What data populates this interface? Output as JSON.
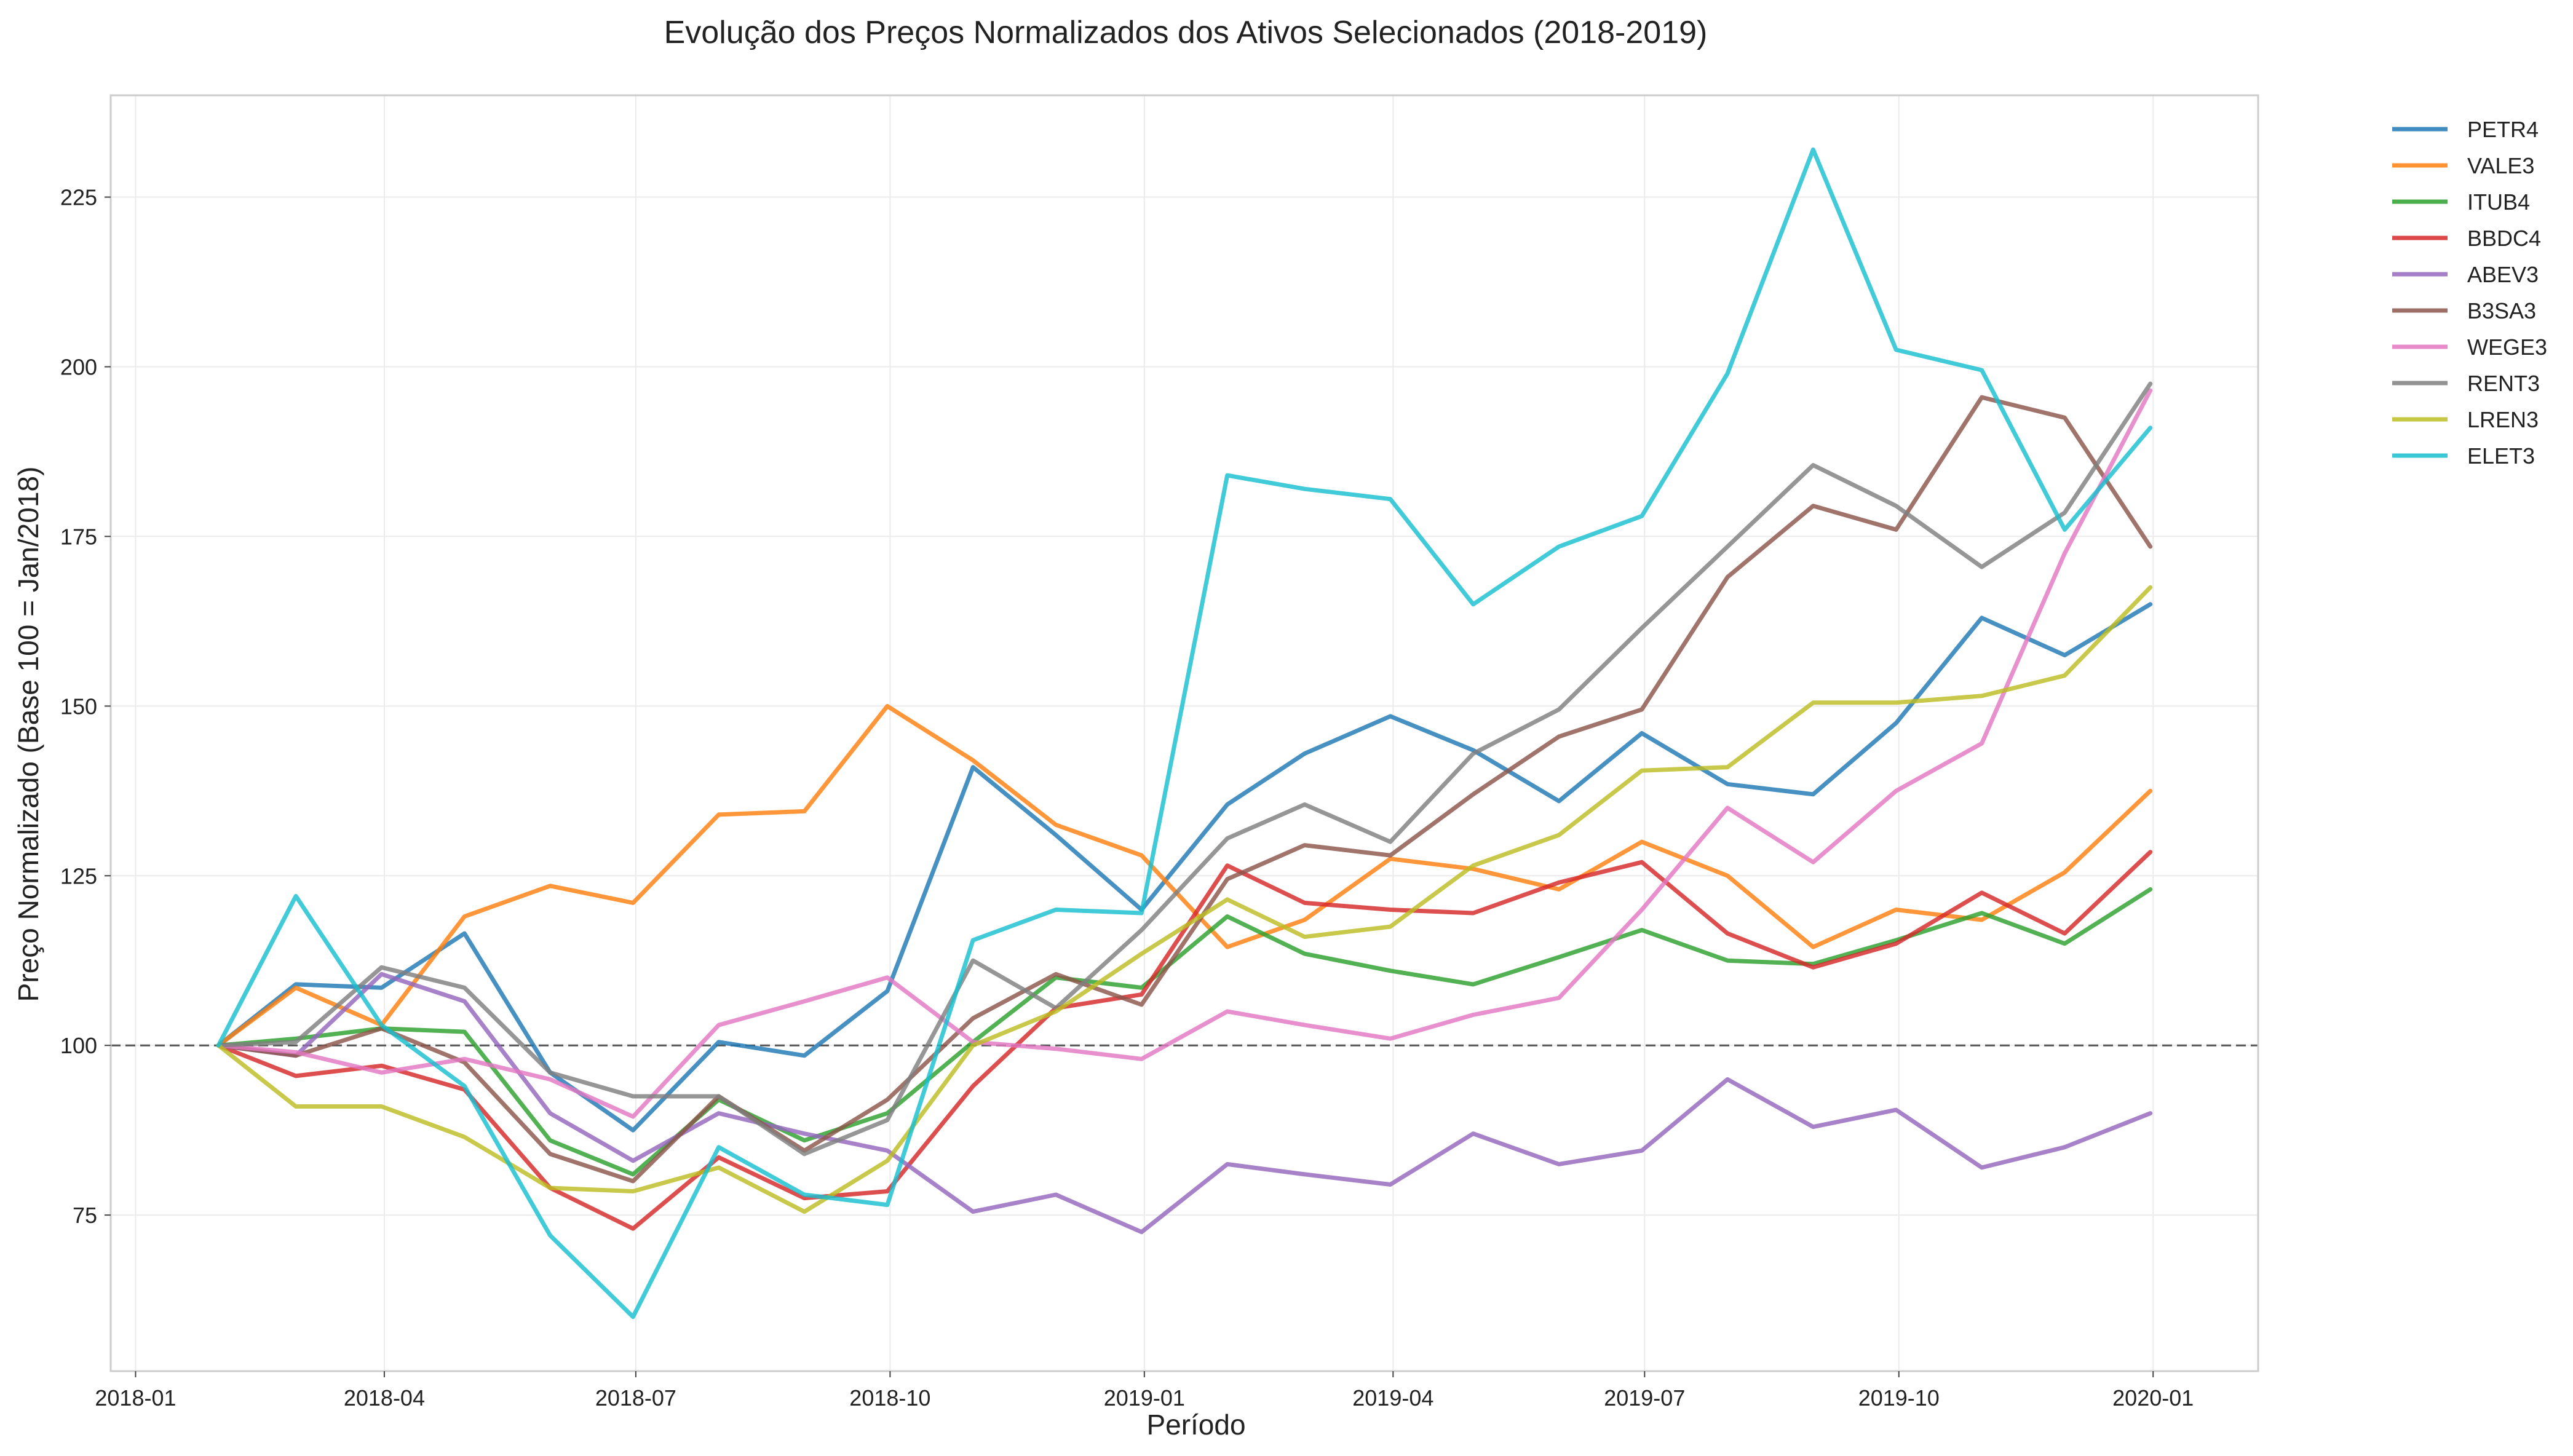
{
  "chart_data": {
    "type": "line",
    "title": "Evolução dos Preços Normalizados dos Ativos Selecionados (2018-2019)",
    "xlabel": "Período",
    "ylabel": "Preço Normalizado (Base 100 = Jan/2018)",
    "x": [
      "2018-01-31",
      "2018-02-28",
      "2018-03-31",
      "2018-04-30",
      "2018-05-31",
      "2018-06-30",
      "2018-07-31",
      "2018-08-31",
      "2018-09-30",
      "2018-10-31",
      "2018-11-30",
      "2018-12-31",
      "2019-01-31",
      "2019-02-28",
      "2019-03-31",
      "2019-04-30",
      "2019-05-31",
      "2019-06-30",
      "2019-07-31",
      "2019-08-31",
      "2019-09-30",
      "2019-10-31",
      "2019-11-30",
      "2019-12-31"
    ],
    "xlim": [
      "2017-12-23",
      "2020-02-08"
    ],
    "ylim": [
      52,
      240
    ],
    "xticks": [
      "2018-01",
      "2018-04",
      "2018-07",
      "2018-10",
      "2019-01",
      "2019-04",
      "2019-07",
      "2019-10",
      "2020-01"
    ],
    "xtick_dates": [
      "2018-01-01",
      "2018-04-01",
      "2018-07-01",
      "2018-10-01",
      "2019-01-01",
      "2019-04-01",
      "2019-07-01",
      "2019-10-01",
      "2020-01-01"
    ],
    "yticks": [
      75,
      100,
      125,
      150,
      175,
      200,
      225
    ],
    "reference_line": 100,
    "grid": true,
    "legend": "outside-top-right",
    "series": [
      {
        "name": "PETR4",
        "color": "#1f77b4",
        "values": [
          100,
          109,
          108.5,
          116.5,
          96,
          87.5,
          100.5,
          98.5,
          108,
          141,
          131,
          120,
          135.5,
          143,
          148.5,
          143.5,
          136,
          146,
          138.5,
          137,
          147.5,
          163,
          157.5,
          165
        ]
      },
      {
        "name": "VALE3",
        "color": "#ff7f0e",
        "values": [
          100,
          108.5,
          103,
          119,
          123.5,
          121,
          134,
          134.5,
          150,
          142,
          132.5,
          128,
          114.5,
          118.5,
          127.5,
          126,
          123,
          130,
          125,
          114.5,
          120,
          118.5,
          125.5,
          137.5
        ]
      },
      {
        "name": "ITUB4",
        "color": "#2ca02c",
        "values": [
          100,
          101,
          102.5,
          102,
          86,
          81,
          92,
          86,
          90,
          100.5,
          110,
          108.5,
          119,
          113.5,
          111,
          109,
          113,
          117,
          112.5,
          112,
          115.5,
          119.5,
          115,
          123
        ]
      },
      {
        "name": "BBDC4",
        "color": "#d62728",
        "values": [
          100,
          95.5,
          97,
          93.5,
          79,
          73,
          83.5,
          77.5,
          78.5,
          94,
          105.5,
          107.5,
          126.5,
          121,
          120,
          119.5,
          124,
          127,
          116.5,
          111.5,
          115,
          122.5,
          116.5,
          128.5
        ]
      },
      {
        "name": "ABEV3",
        "color": "#9467bd",
        "values": [
          100,
          98.5,
          110.5,
          106.5,
          90,
          83,
          90,
          87,
          84.5,
          75.5,
          78,
          72.5,
          82.5,
          81,
          79.5,
          87,
          82.5,
          84.5,
          95,
          88,
          90.5,
          82,
          85,
          90
        ]
      },
      {
        "name": "B3SA3",
        "color": "#8c564b",
        "values": [
          100,
          98.5,
          102.5,
          97.5,
          84,
          80,
          92.5,
          84.5,
          92,
          104,
          110.5,
          106,
          124.5,
          129.5,
          128,
          137,
          145.5,
          149.5,
          169,
          179.5,
          176,
          195.5,
          192.5,
          173.5
        ]
      },
      {
        "name": "WEGE3",
        "color": "#e377c2",
        "values": [
          100,
          99,
          96,
          98,
          95,
          89.5,
          103,
          106.5,
          110,
          100.5,
          99.5,
          98,
          105,
          103,
          101,
          104.5,
          107,
          120,
          135,
          127,
          137.5,
          144.5,
          172.5,
          196.5
        ]
      },
      {
        "name": "RENT3",
        "color": "#7f7f7f",
        "values": [
          100,
          100.5,
          111.5,
          108.5,
          96,
          92.5,
          92.5,
          84,
          89,
          112.5,
          105.5,
          117,
          130.5,
          135.5,
          130,
          143,
          149.5,
          161.5,
          173.5,
          185.5,
          179.5,
          170.5,
          178.5,
          197.5
        ]
      },
      {
        "name": "LREN3",
        "color": "#bcbd22",
        "values": [
          100,
          91,
          91,
          86.5,
          79,
          78.5,
          82,
          75.5,
          83,
          100,
          105,
          113.5,
          121.5,
          116,
          117.5,
          126.5,
          131,
          140.5,
          141,
          150.5,
          150.5,
          151.5,
          154.5,
          167.5
        ]
      },
      {
        "name": "ELET3",
        "color": "#17becf",
        "values": [
          100,
          122,
          103,
          94,
          72,
          60,
          85,
          78,
          76.5,
          115.5,
          120,
          119.5,
          184,
          182,
          180.5,
          165,
          173.5,
          178,
          199,
          232,
          202.5,
          199.5,
          176,
          191
        ]
      }
    ]
  }
}
